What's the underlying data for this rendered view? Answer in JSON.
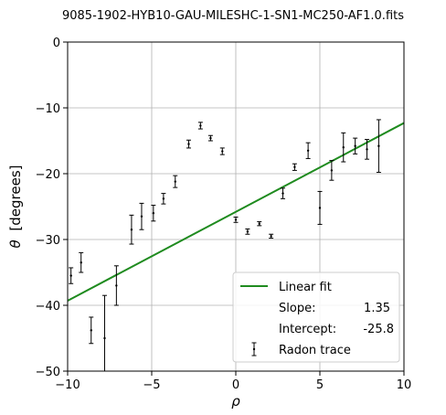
{
  "chart_data": {
    "type": "scatter",
    "title": "9085-1902-HYB10-GAU-MILESHC-1-SN1-MC250-AF1.0.fits",
    "xlabel": "ρ",
    "ylabel_symbol": "θ",
    "ylabel_unit": "[degrees]",
    "xlim": [
      -10,
      10
    ],
    "ylim": [
      -50,
      0
    ],
    "xticks": [
      -10,
      -5,
      0,
      5,
      10
    ],
    "xtick_labels": [
      "−10",
      "−5",
      "0",
      "5",
      "10"
    ],
    "yticks": [
      0,
      -10,
      -20,
      -30,
      -40,
      -50
    ],
    "ytick_labels": [
      "0",
      "−10",
      "−20",
      "−30",
      "−40",
      "−50"
    ],
    "grid": true,
    "legend_position": "lower-right",
    "series": [
      {
        "name": "Radon trace",
        "kind": "errorbar",
        "color": "#000000",
        "points": [
          {
            "x": -9.8,
            "y": -35.5,
            "err": 1.2
          },
          {
            "x": -9.2,
            "y": -33.5,
            "err": 1.5
          },
          {
            "x": -8.6,
            "y": -43.8,
            "err": 2.0
          },
          {
            "x": -7.8,
            "y": -45.0,
            "err": 6.5
          },
          {
            "x": -7.1,
            "y": -37.0,
            "err": 3.0
          },
          {
            "x": -6.2,
            "y": -28.5,
            "err": 2.2
          },
          {
            "x": -5.6,
            "y": -26.5,
            "err": 2.0
          },
          {
            "x": -4.9,
            "y": -26.0,
            "err": 1.2
          },
          {
            "x": -4.3,
            "y": -23.8,
            "err": 0.8
          },
          {
            "x": -3.6,
            "y": -21.2,
            "err": 0.9
          },
          {
            "x": -2.8,
            "y": -15.5,
            "err": 0.6
          },
          {
            "x": -2.1,
            "y": -12.7,
            "err": 0.5
          },
          {
            "x": -1.5,
            "y": -14.6,
            "err": 0.4
          },
          {
            "x": -0.8,
            "y": -16.6,
            "err": 0.5
          },
          {
            "x": 0.0,
            "y": -27.0,
            "err": 0.4
          },
          {
            "x": 0.7,
            "y": -28.8,
            "err": 0.4
          },
          {
            "x": 1.4,
            "y": -27.6,
            "err": 0.3
          },
          {
            "x": 2.1,
            "y": -29.5,
            "err": 0.3
          },
          {
            "x": 2.8,
            "y": -23.0,
            "err": 0.8
          },
          {
            "x": 3.5,
            "y": -19.0,
            "err": 0.5
          },
          {
            "x": 4.3,
            "y": -16.5,
            "err": 1.2
          },
          {
            "x": 5.0,
            "y": -25.2,
            "err": 2.5
          },
          {
            "x": 5.7,
            "y": -19.5,
            "err": 1.5
          },
          {
            "x": 6.4,
            "y": -16.0,
            "err": 2.2
          },
          {
            "x": 7.1,
            "y": -15.8,
            "err": 1.2
          },
          {
            "x": 7.8,
            "y": -16.3,
            "err": 1.5
          },
          {
            "x": 8.5,
            "y": -15.8,
            "err": 4.0
          }
        ]
      },
      {
        "name": "Linear fit",
        "kind": "line",
        "color": "#1f8b1f",
        "slope": 1.35,
        "intercept": -25.8
      }
    ],
    "legend": {
      "fit_label": "Linear fit",
      "slope_label": "Slope:",
      "slope_value": "1.35",
      "intercept_label": "Intercept:",
      "intercept_value": "-25.8",
      "trace_label": "Radon trace"
    }
  }
}
